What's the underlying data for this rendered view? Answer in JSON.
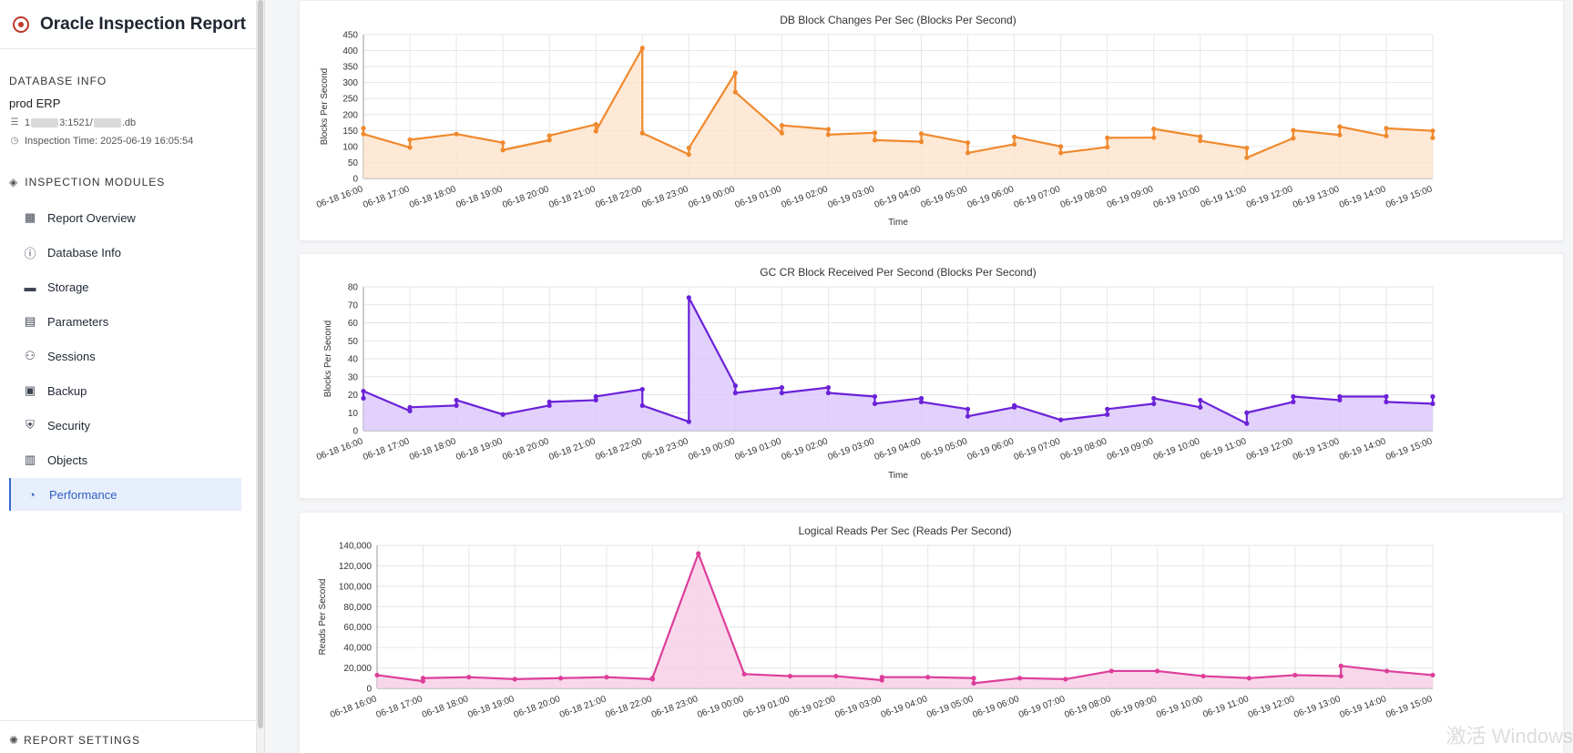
{
  "app": {
    "title": "Oracle Inspection Report"
  },
  "database_info": {
    "section_label": "DATABASE INFO",
    "name": "prod ERP",
    "connection_prefix": "1",
    "connection_mid": "3:1521/",
    "connection_suffix": ".db",
    "inspection_time": "Inspection Time: 2025-06-19 16:05:54"
  },
  "modules": {
    "section_label": "INSPECTION MODULES",
    "items": [
      {
        "label": "Report Overview",
        "icon": "grid-icon"
      },
      {
        "label": "Database Info",
        "icon": "info-icon"
      },
      {
        "label": "Storage",
        "icon": "storage-icon"
      },
      {
        "label": "Parameters",
        "icon": "document-icon"
      },
      {
        "label": "Sessions",
        "icon": "users-icon"
      },
      {
        "label": "Backup",
        "icon": "archive-icon"
      },
      {
        "label": "Security",
        "icon": "shield-icon"
      },
      {
        "label": "Objects",
        "icon": "table-icon"
      },
      {
        "label": "Performance",
        "icon": "gauge-icon"
      }
    ],
    "active": "Performance"
  },
  "report_settings": {
    "label": "REPORT SETTINGS"
  },
  "watermark": "激活 Windows",
  "chart_data": [
    {
      "type": "area",
      "title": "DB Block Changes Per Sec (Blocks Per Second)",
      "xlabel": "Time",
      "ylabel": "Blocks Per Second",
      "ylim": [
        0,
        450
      ],
      "yticks": [
        "0",
        "50",
        "100",
        "150",
        "200",
        "250",
        "300",
        "350",
        "400",
        "450"
      ],
      "categories": [
        "06-18 16:00",
        "06-18 17:00",
        "06-18 18:00",
        "06-18 19:00",
        "06-18 20:00",
        "06-18 21:00",
        "06-18 22:00",
        "06-18 23:00",
        "06-19 00:00",
        "06-19 01:00",
        "06-19 02:00",
        "06-19 03:00",
        "06-19 04:00",
        "06-19 05:00",
        "06-19 06:00",
        "06-19 07:00",
        "06-19 08:00",
        "06-19 09:00",
        "06-19 10:00",
        "06-19 11:00",
        "06-19 12:00",
        "06-19 13:00",
        "06-19 14:00",
        "06-19 15:00"
      ],
      "color": "#f0892e",
      "fill": "#fde3cc",
      "x": [
        0,
        0,
        1,
        1,
        2,
        3,
        3,
        4,
        4,
        5,
        5,
        6,
        6,
        7,
        7,
        8,
        8,
        9,
        9,
        10,
        10,
        11,
        11,
        12,
        12,
        13,
        13,
        14,
        14,
        15,
        15,
        16,
        16,
        17,
        17,
        18,
        18,
        19,
        19,
        20,
        20,
        21,
        21,
        22,
        22,
        23,
        23
      ],
      "values": [
        157,
        139,
        97,
        121,
        139,
        112,
        89,
        120,
        134,
        169,
        148,
        408,
        142,
        75,
        95,
        330,
        270,
        142,
        166,
        154,
        137,
        143,
        120,
        115,
        140,
        112,
        80,
        107,
        130,
        100,
        80,
        98,
        127,
        128,
        155,
        131,
        118,
        95,
        65,
        126,
        151,
        136,
        162,
        133,
        157,
        149,
        127
      ]
    },
    {
      "type": "area",
      "title": "GC CR Block Received Per Second (Blocks Per Second)",
      "xlabel": "Time",
      "ylabel": "Blocks Per Second",
      "ylim": [
        0,
        80
      ],
      "yticks": [
        "0",
        "10",
        "20",
        "30",
        "40",
        "50",
        "60",
        "70",
        "80"
      ],
      "categories": [
        "06-18 16:00",
        "06-18 17:00",
        "06-18 18:00",
        "06-18 19:00",
        "06-18 20:00",
        "06-18 21:00",
        "06-18 22:00",
        "06-18 23:00",
        "06-19 00:00",
        "06-19 01:00",
        "06-19 02:00",
        "06-19 03:00",
        "06-19 04:00",
        "06-19 05:00",
        "06-19 06:00",
        "06-19 07:00",
        "06-19 08:00",
        "06-19 09:00",
        "06-19 10:00",
        "06-19 11:00",
        "06-19 12:00",
        "06-19 13:00",
        "06-19 14:00",
        "06-19 15:00"
      ],
      "color": "#6b21d8",
      "fill": "#d9c6fb",
      "x": [
        0,
        0,
        1,
        1,
        2,
        2,
        3,
        4,
        4,
        5,
        5,
        6,
        6,
        7,
        7,
        8,
        8,
        9,
        9,
        10,
        10,
        11,
        11,
        12,
        12,
        13,
        13,
        14,
        14,
        15,
        16,
        16,
        17,
        17,
        18,
        18,
        19,
        19,
        20,
        20,
        21,
        21,
        22,
        22,
        23,
        23
      ],
      "values": [
        18,
        22,
        11,
        13,
        14,
        17,
        9,
        14,
        16,
        17,
        19,
        23,
        14,
        5,
        74,
        25,
        21,
        24,
        21,
        24,
        21,
        19,
        15,
        18,
        16,
        12,
        8,
        13,
        14,
        6,
        9,
        12,
        15,
        18,
        13,
        17,
        4,
        10,
        16,
        19,
        17,
        19,
        19,
        16,
        15,
        19
      ]
    },
    {
      "type": "area",
      "title": "Logical Reads Per Sec (Reads Per Second)",
      "xlabel": "",
      "ylabel": "Reads Per Second",
      "ylim": [
        0,
        140000
      ],
      "yticks": [
        "0",
        "20,000",
        "40,000",
        "60,000",
        "80,000",
        "100,000",
        "120,000",
        "140,000"
      ],
      "categories": [
        "06-18 16:00",
        "06-18 17:00",
        "06-18 18:00",
        "06-18 19:00",
        "06-18 20:00",
        "06-18 21:00",
        "06-18 22:00",
        "06-18 23:00",
        "06-19 00:00",
        "06-19 01:00",
        "06-19 02:00",
        "06-19 03:00",
        "06-19 04:00",
        "06-19 05:00",
        "06-19 06:00",
        "06-19 07:00",
        "06-19 08:00",
        "06-19 09:00",
        "06-19 10:00",
        "06-19 11:00",
        "06-19 12:00",
        "06-19 13:00",
        "06-19 14:00",
        "06-19 15:00"
      ],
      "color": "#dc3e9a",
      "fill": "#f7cde5",
      "x": [
        0,
        1,
        1,
        2,
        3,
        4,
        5,
        6,
        6,
        7,
        8,
        9,
        10,
        11,
        11,
        12,
        13,
        13,
        14,
        15,
        16,
        17,
        18,
        19,
        20,
        21,
        21,
        22,
        23
      ],
      "values": [
        13000,
        7000,
        10000,
        11000,
        9000,
        10000,
        11000,
        9000,
        10000,
        132000,
        14000,
        12000,
        12000,
        8000,
        11000,
        11000,
        10000,
        5000,
        10000,
        9000,
        17000,
        17000,
        12000,
        10000,
        13000,
        12000,
        22000,
        17000,
        13000
      ]
    }
  ]
}
